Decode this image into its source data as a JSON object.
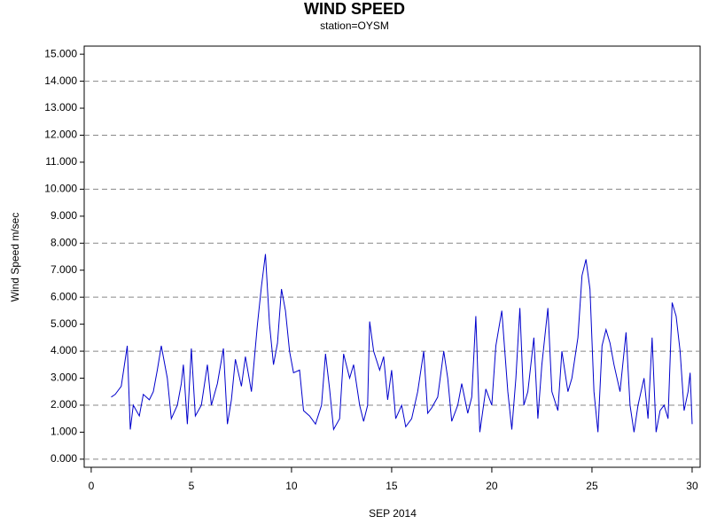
{
  "chart_data": {
    "type": "line",
    "title": "WIND SPEED",
    "subtitle": "station=OYSM",
    "x_label": "SEP 2014",
    "y_label": "Wind Speed m/sec",
    "xlim": [
      -0.35,
      30.4
    ],
    "xticks": [
      0,
      5,
      10,
      15,
      20,
      25,
      30
    ],
    "ylim": [
      -0.3,
      15.3
    ],
    "yticks": [
      {
        "value": 0,
        "label": "0.000"
      },
      {
        "value": 1,
        "label": "1.000"
      },
      {
        "value": 2,
        "label": "2.000"
      },
      {
        "value": 3,
        "label": "3.000"
      },
      {
        "value": 4,
        "label": "4.000"
      },
      {
        "value": 5,
        "label": "5.000"
      },
      {
        "value": 6,
        "label": "6.000"
      },
      {
        "value": 7,
        "label": "7.000"
      },
      {
        "value": 8,
        "label": "8.000"
      },
      {
        "value": 9,
        "label": "9.000"
      },
      {
        "value": 10,
        "label": "10.000"
      },
      {
        "value": 11,
        "label": "11.000"
      },
      {
        "value": 12,
        "label": "12.000"
      },
      {
        "value": 13,
        "label": "13.000"
      },
      {
        "value": 14,
        "label": "14.000"
      },
      {
        "value": 15,
        "label": "15.000"
      }
    ],
    "grid": true,
    "x": [
      1,
      1.2,
      1.5,
      1.8,
      1.95,
      2.1,
      2.4,
      2.6,
      2.9,
      3.1,
      3.3,
      3.5,
      3.8,
      4,
      4.3,
      4.5,
      4.6,
      4.8,
      5,
      5.2,
      5.5,
      5.8,
      6,
      6.3,
      6.6,
      6.8,
      7,
      7.2,
      7.5,
      7.7,
      8,
      8.3,
      8.5,
      8.7,
      8.9,
      9.1,
      9.3,
      9.5,
      9.7,
      9.9,
      10.1,
      10.4,
      10.6,
      10.9,
      11.2,
      11.5,
      11.7,
      11.9,
      12.1,
      12.4,
      12.6,
      12.9,
      13.1,
      13.4,
      13.6,
      13.8,
      13.9,
      14.1,
      14.4,
      14.6,
      14.8,
      15,
      15.2,
      15.5,
      15.7,
      16,
      16.3,
      16.6,
      16.8,
      17,
      17.3,
      17.6,
      17.8,
      18,
      18.3,
      18.5,
      18.8,
      19,
      19.2,
      19.4,
      19.7,
      20,
      20.2,
      20.5,
      20.8,
      21,
      21.2,
      21.4,
      21.6,
      21.8,
      22.1,
      22.3,
      22.5,
      22.8,
      23,
      23.3,
      23.5,
      23.8,
      24,
      24.3,
      24.5,
      24.7,
      24.9,
      25.1,
      25.3,
      25.5,
      25.7,
      25.9,
      26.1,
      26.4,
      26.7,
      26.9,
      27.1,
      27.3,
      27.6,
      27.8,
      28,
      28.2,
      28.4,
      28.6,
      28.8,
      29,
      29.2,
      29.4,
      29.6,
      29.8,
      29.9,
      30
    ],
    "series": [
      {
        "name": "Wind Speed",
        "color": "#0000cc",
        "values": [
          2.3,
          2.4,
          2.7,
          4.2,
          1.1,
          2.0,
          1.6,
          2.4,
          2.2,
          2.5,
          3.3,
          4.2,
          3.0,
          1.5,
          2.0,
          2.8,
          3.5,
          1.3,
          4.1,
          1.6,
          2.0,
          3.5,
          2.0,
          2.8,
          4.1,
          1.3,
          2.2,
          3.7,
          2.7,
          3.8,
          2.5,
          5.0,
          6.4,
          7.6,
          5.0,
          3.5,
          4.3,
          6.3,
          5.5,
          4.0,
          3.2,
          3.3,
          1.8,
          1.6,
          1.3,
          2.0,
          3.9,
          2.6,
          1.1,
          1.5,
          3.9,
          3.0,
          3.5,
          2.0,
          1.4,
          2.0,
          5.1,
          4.0,
          3.3,
          3.8,
          2.2,
          3.3,
          1.5,
          2.0,
          1.2,
          1.5,
          2.5,
          4.0,
          1.7,
          1.9,
          2.3,
          4.0,
          3.0,
          1.4,
          2.0,
          2.8,
          1.7,
          2.3,
          5.3,
          1.0,
          2.6,
          2.0,
          4.2,
          5.5,
          2.5,
          1.1,
          3.0,
          5.6,
          2.0,
          2.5,
          4.5,
          1.5,
          3.5,
          5.6,
          2.5,
          1.8,
          4.0,
          2.5,
          3.0,
          4.5,
          6.8,
          7.4,
          6.3,
          2.5,
          1.0,
          4.2,
          4.8,
          4.3,
          3.5,
          2.5,
          4.7,
          2.0,
          1.0,
          2.0,
          3.0,
          1.5,
          4.5,
          1.0,
          1.8,
          2.0,
          1.5,
          5.8,
          5.3,
          4.0,
          1.8,
          2.5,
          3.2,
          1.3
        ]
      }
    ]
  }
}
